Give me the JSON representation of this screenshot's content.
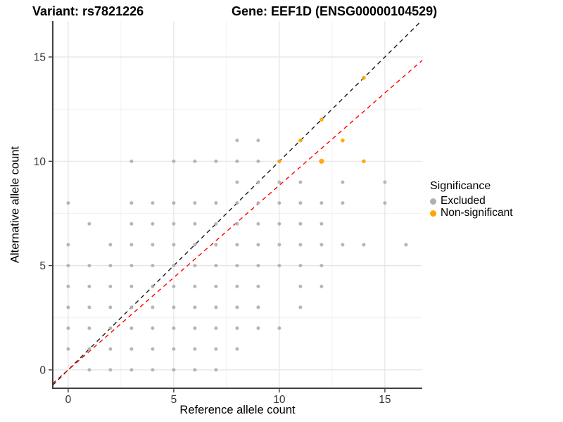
{
  "chart_data": {
    "type": "scatter",
    "title_left": "Variant: rs7821226",
    "title_right": "Gene: EEF1D (ENSG00000104529)",
    "xlabel": "Reference allele count",
    "ylabel": "Alternative allele count",
    "xlim": [
      -0.73,
      16.77
    ],
    "ylim": [
      -0.88,
      16.72
    ],
    "xticks": [
      0,
      5,
      10,
      15
    ],
    "yticks": [
      0,
      5,
      10,
      15
    ],
    "minor_gridlines_x": [
      2.5,
      7.5,
      12.5
    ],
    "minor_gridlines_y": [
      2.5,
      7.5,
      12.5
    ],
    "grid": "on",
    "legend_title": "Significance",
    "legend_position": "right",
    "colors": {
      "excluded": "#b0b0b0",
      "non_significant": "#ffa400",
      "identity_line": "#1a1a1a",
      "ratio_line": "#ff0000",
      "axis_line": "#404040",
      "major_grid": "#e4e4e4",
      "minor_grid": "#f0f0f0"
    },
    "series": [
      {
        "name": "Excluded",
        "color": "#b0b0b0",
        "marker_radius": 2.5,
        "points": [
          [
            1,
            0
          ],
          [
            2,
            0
          ],
          [
            3,
            0
          ],
          [
            4,
            0
          ],
          [
            5,
            0
          ],
          [
            6,
            0
          ],
          [
            7,
            0
          ],
          [
            0,
            1
          ],
          [
            1,
            1
          ],
          [
            2,
            1
          ],
          [
            3,
            1
          ],
          [
            4,
            1
          ],
          [
            5,
            1
          ],
          [
            6,
            1
          ],
          [
            7,
            1
          ],
          [
            8,
            1
          ],
          [
            0,
            2
          ],
          [
            1,
            2
          ],
          [
            2,
            2
          ],
          [
            3,
            2
          ],
          [
            4,
            2
          ],
          [
            5,
            2
          ],
          [
            6,
            2
          ],
          [
            7,
            2
          ],
          [
            8,
            2
          ],
          [
            9,
            2
          ],
          [
            10,
            2
          ],
          [
            0,
            3
          ],
          [
            1,
            3
          ],
          [
            2,
            3
          ],
          [
            3,
            3
          ],
          [
            4,
            3
          ],
          [
            5,
            3
          ],
          [
            6,
            3
          ],
          [
            7,
            3
          ],
          [
            8,
            3
          ],
          [
            9,
            3
          ],
          [
            11,
            3
          ],
          [
            0,
            4
          ],
          [
            1,
            4
          ],
          [
            2,
            4
          ],
          [
            3,
            4
          ],
          [
            4,
            4
          ],
          [
            5,
            4
          ],
          [
            6,
            4
          ],
          [
            7,
            4
          ],
          [
            8,
            4
          ],
          [
            9,
            4
          ],
          [
            11,
            4
          ],
          [
            12,
            4
          ],
          [
            0,
            5
          ],
          [
            1,
            5
          ],
          [
            2,
            5
          ],
          [
            3,
            5
          ],
          [
            4,
            5
          ],
          [
            5,
            5
          ],
          [
            6,
            5
          ],
          [
            7,
            5
          ],
          [
            8,
            5
          ],
          [
            9,
            5
          ],
          [
            10,
            5
          ],
          [
            11,
            5
          ],
          [
            12,
            5
          ],
          [
            0,
            6
          ],
          [
            2,
            6
          ],
          [
            3,
            6
          ],
          [
            4,
            6
          ],
          [
            5,
            6
          ],
          [
            6,
            6
          ],
          [
            7,
            6
          ],
          [
            8,
            6
          ],
          [
            9,
            6
          ],
          [
            10,
            6
          ],
          [
            11,
            6
          ],
          [
            12,
            6
          ],
          [
            13,
            6
          ],
          [
            14,
            6
          ],
          [
            16,
            6
          ],
          [
            1,
            7
          ],
          [
            3,
            7
          ],
          [
            4,
            7
          ],
          [
            5,
            7
          ],
          [
            6,
            7
          ],
          [
            7,
            7
          ],
          [
            8,
            7
          ],
          [
            9,
            7
          ],
          [
            10,
            7
          ],
          [
            11,
            7
          ],
          [
            12,
            7
          ],
          [
            0,
            8
          ],
          [
            3,
            8
          ],
          [
            4,
            8
          ],
          [
            5,
            8
          ],
          [
            6,
            8
          ],
          [
            7,
            8
          ],
          [
            8,
            8
          ],
          [
            9,
            8
          ],
          [
            10,
            8
          ],
          [
            11,
            8
          ],
          [
            12,
            8
          ],
          [
            13,
            8
          ],
          [
            15,
            8
          ],
          [
            8,
            9
          ],
          [
            9,
            9
          ],
          [
            10,
            9
          ],
          [
            11,
            9
          ],
          [
            13,
            9
          ],
          [
            15,
            9
          ],
          [
            3,
            10
          ],
          [
            5,
            10
          ],
          [
            6,
            10
          ],
          [
            7,
            10
          ],
          [
            8,
            10
          ],
          [
            9,
            10
          ],
          [
            8,
            11
          ],
          [
            9,
            11
          ]
        ]
      },
      {
        "name": "Non-significant",
        "color": "#ffa400",
        "marker_radius": 2.8,
        "points": [
          [
            10,
            10
          ],
          [
            11,
            11
          ],
          [
            12,
            12
          ],
          [
            14,
            14
          ],
          [
            12,
            10,
            3.6
          ],
          [
            13,
            11
          ],
          [
            14,
            10
          ]
        ]
      }
    ],
    "reference_lines": [
      {
        "name": "identity",
        "slope": 1,
        "intercept": 0,
        "color": "#1a1a1a",
        "style": "dashed"
      },
      {
        "name": "expected-ratio",
        "slope": 0.885,
        "intercept": 0,
        "color": "#ff0000",
        "style": "dashed"
      }
    ]
  }
}
